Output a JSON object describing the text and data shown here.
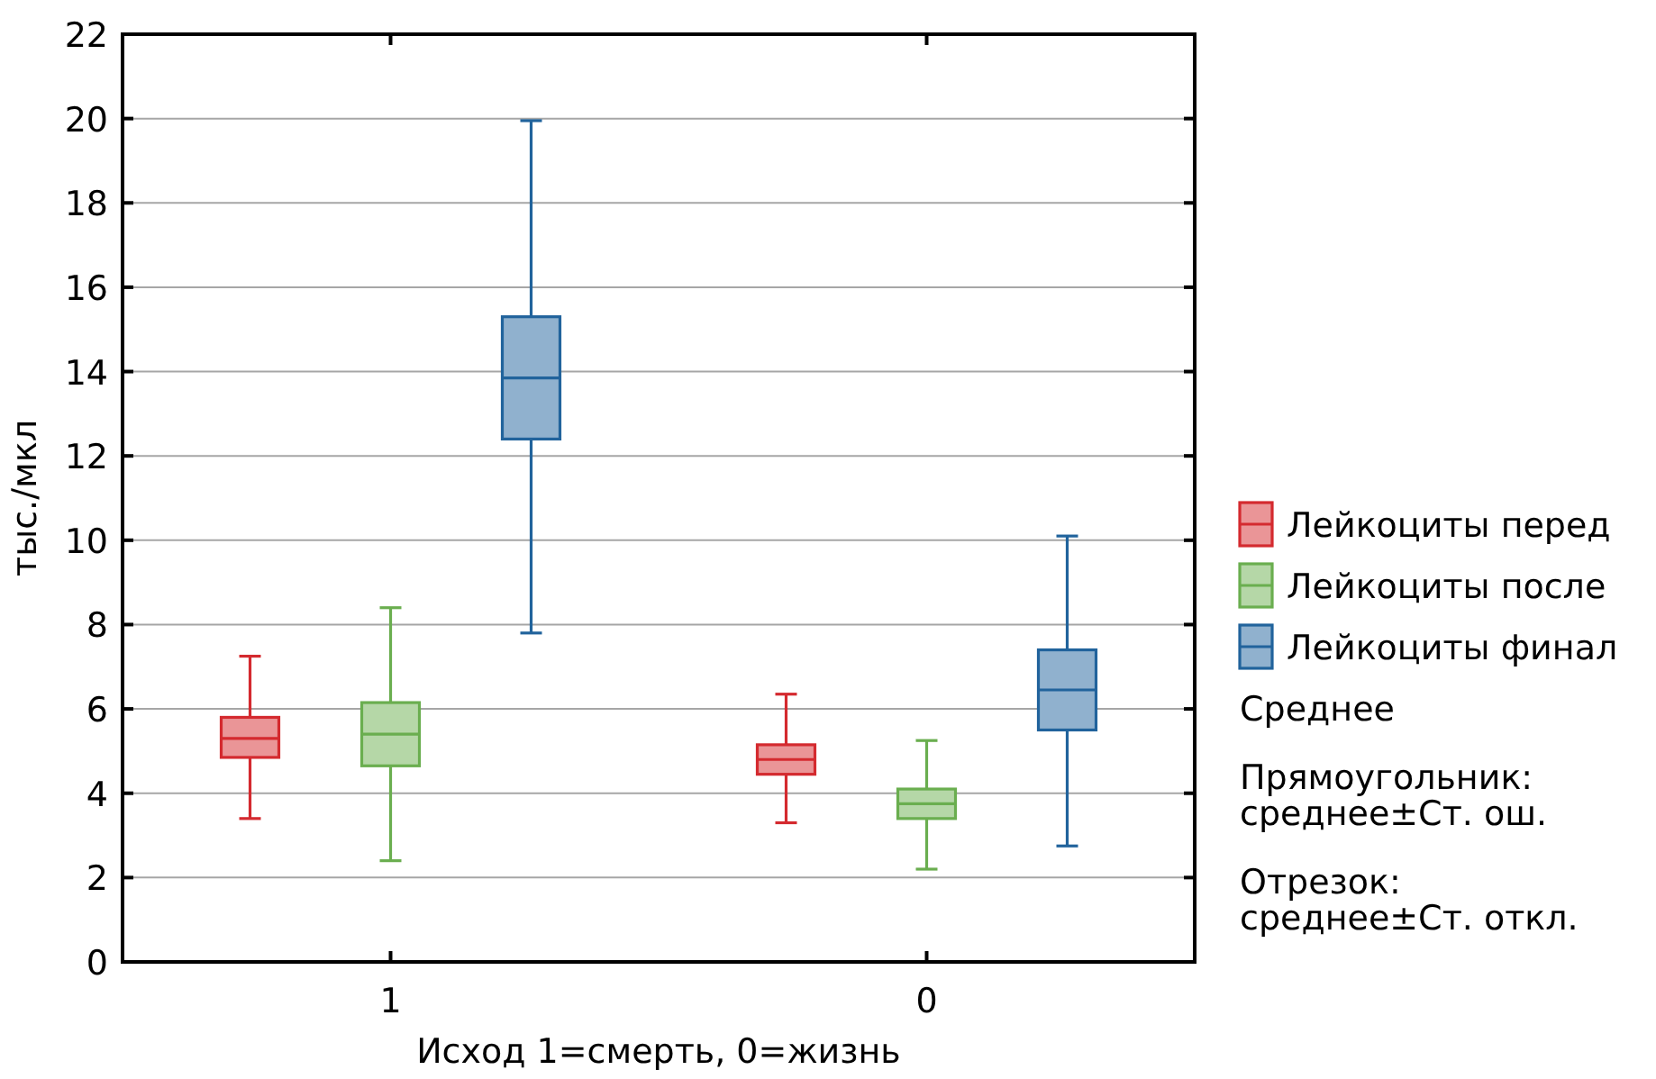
{
  "chart_data": {
    "type": "box",
    "xlabel": "Исход 1=смерть, 0=жизнь",
    "ylabel": "тыс./мкл",
    "categories": [
      "1",
      "0"
    ],
    "ylim": [
      0,
      22
    ],
    "yticks": [
      0,
      2,
      4,
      6,
      8,
      10,
      12,
      14,
      16,
      18,
      20,
      22
    ],
    "grid": "y",
    "legend": "right",
    "series": [
      {
        "name": "Лейкоциты перед",
        "color": "#d42a2f",
        "boxes": [
          {
            "low": 3.4,
            "q1": 4.85,
            "median": 5.3,
            "q3": 5.8,
            "high": 7.25
          },
          {
            "low": 3.3,
            "q1": 4.45,
            "median": 4.8,
            "q3": 5.15,
            "high": 6.35
          }
        ]
      },
      {
        "name": "Лейкоциты после",
        "color": "#6aae4f",
        "boxes": [
          {
            "low": 2.4,
            "q1": 4.65,
            "median": 5.4,
            "q3": 6.15,
            "high": 8.4
          },
          {
            "low": 2.2,
            "q1": 3.4,
            "median": 3.75,
            "q3": 4.1,
            "high": 5.25
          }
        ]
      },
      {
        "name": "Лейкоциты финал",
        "color": "#21639c",
        "boxes": [
          {
            "low": 7.8,
            "q1": 12.4,
            "median": 13.85,
            "q3": 15.3,
            "high": 19.95
          },
          {
            "low": 2.75,
            "q1": 5.5,
            "median": 6.45,
            "q3": 7.4,
            "high": 10.1
          }
        ]
      }
    ],
    "annotations": [
      "Среднее",
      "Прямоугольник:\nсреднее±Ст. ош.",
      "Отрезок:\nсреднее±Ст. откл."
    ]
  }
}
